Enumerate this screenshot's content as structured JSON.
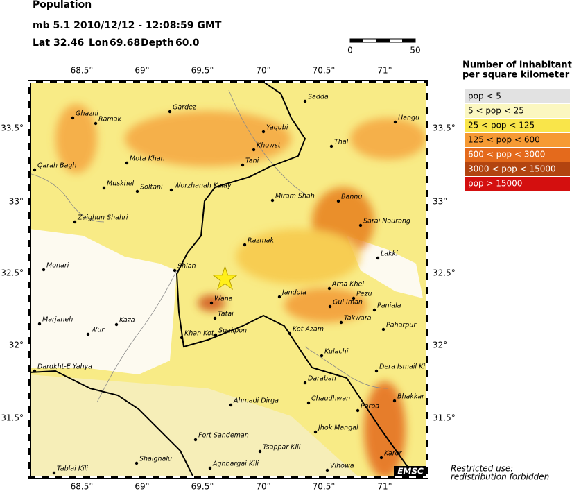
{
  "header": {
    "title": "Population",
    "event_line": "mb 5.1  2010/12/12 - 12:08:59 GMT",
    "location": [
      {
        "label": "Lat",
        "value": 32.46
      },
      {
        "label": "Lon",
        "value": 69.68
      },
      {
        "label": "Depth",
        "value": "60.0"
      }
    ]
  },
  "scale_bar": {
    "labels": [
      "0",
      "50"
    ]
  },
  "map": {
    "lon_ticks": [
      "68.5°",
      "69°",
      "69.5°",
      "70°",
      "70.5°",
      "71°"
    ],
    "lat_ticks": [
      "33.5°",
      "33°",
      "32.5°",
      "32°",
      "31.5°"
    ],
    "cities": [
      "Ghazni",
      "Ramak",
      "Gardez",
      "Sadda",
      "Yaqubi",
      "Hangu",
      "Khowst",
      "Thal",
      "Mota Khan",
      "Tani",
      "Qarah Bagh",
      "Muskhel",
      "Soltani",
      "Worzhanah Kalay",
      "Miram Shah",
      "Bannu",
      "Zaighun Shahri",
      "Sarai Naurang",
      "Razmak",
      "Lakki",
      "Monari",
      "Shian",
      "Arna Khel",
      "Jandola",
      "Wana",
      "Pezu",
      "Gul Iman",
      "Paniala",
      "Marjaneh",
      "Kaza",
      "Tatai",
      "Takwara",
      "Paharpur",
      "Wur",
      "Khan Kot",
      "Spalipon",
      "Kot Azam",
      "Kulachi",
      "Dardkht-E Yahya",
      "Dera Ismail Kh",
      "Daraban",
      "Chaudhwan",
      "Bhakkar",
      "Ahmadi Dirga",
      "Paroa",
      "Jhok Mangal",
      "Fort Sandeman",
      "Tsappar Kili",
      "Karor",
      "Shaighalu",
      "Aghbargai Kili",
      "Vihowa",
      "Tablai Kili"
    ],
    "logo": "EMSC"
  },
  "legend": {
    "title": [
      "Number of inhabitants",
      "per square kilometer"
    ],
    "items": [
      {
        "label": "pop < 5",
        "color": "#e2e2e2"
      },
      {
        "label": "5 < pop < 25",
        "color": "#fbf7c0"
      },
      {
        "label": "25 < pop < 125",
        "color": "#f9e54a"
      },
      {
        "label": "125 < pop < 600",
        "color": "#f69a34"
      },
      {
        "label": "600 < pop < 3000",
        "color": "#e46a1c"
      },
      {
        "label": "3000 < pop < 15000",
        "color": "#b24410"
      },
      {
        "label": "pop > 15000",
        "color": "#d40f0f"
      }
    ]
  },
  "footer": [
    "Restricted use:",
    "redistribution forbidden"
  ]
}
